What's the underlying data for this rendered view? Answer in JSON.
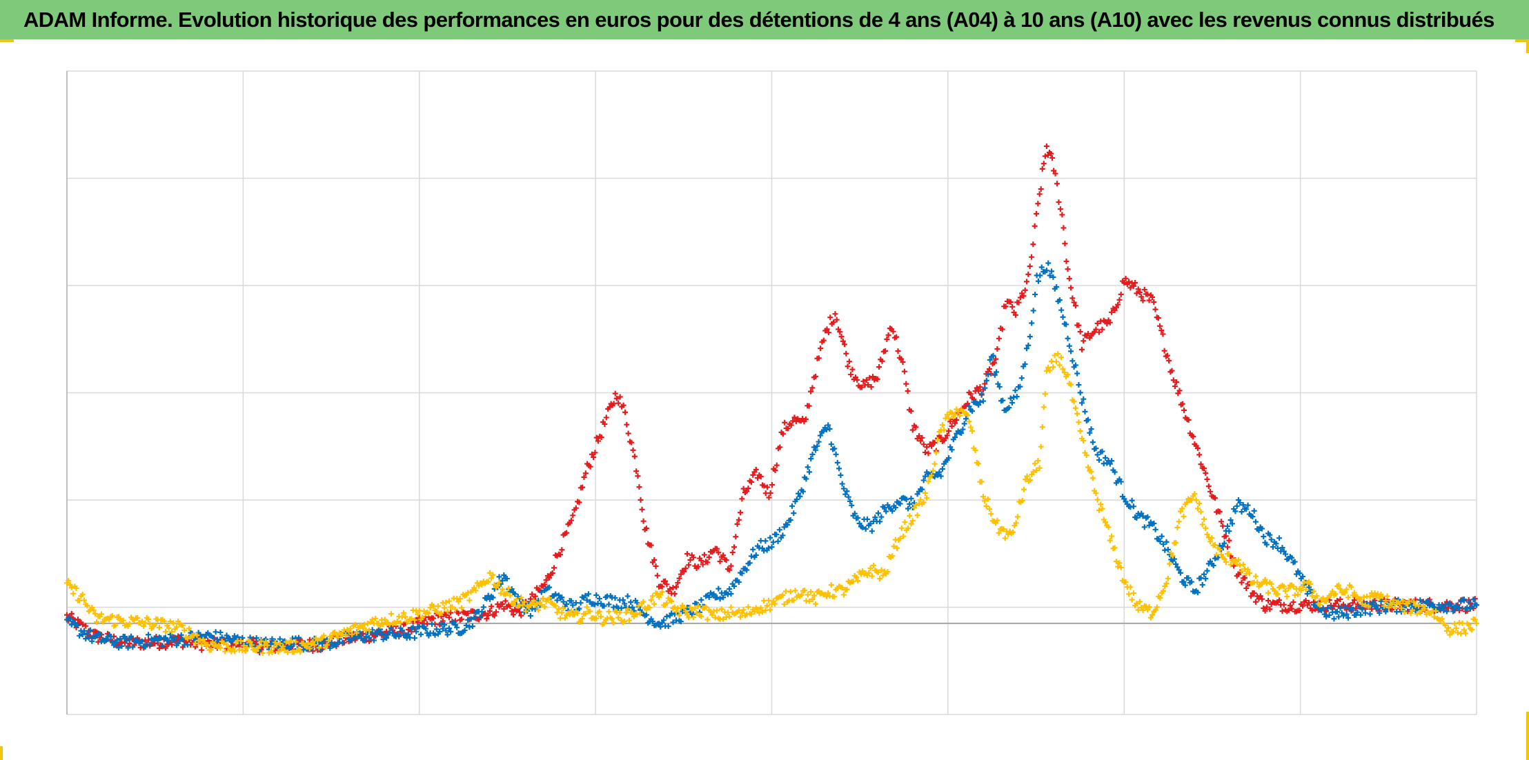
{
  "title": "ADAM Informe. Evolution historique des performances en euros pour des détentions de 4 ans (A04) à 10 ans (A10) avec les revenus connus distribués",
  "colors": {
    "header_bg": "#7fc97a",
    "accent_corner": "#f1c40f",
    "grid": "#d9d9d9",
    "zero_line": "#a6a6a6"
  },
  "chart_data": {
    "type": "scatter",
    "marker": "plus",
    "title": "ADAM Informe. Evolution historique des performances en euros pour des détentions de 4 ans (A04) à 10 ans (A10) avec les revenus connus distribués",
    "xlabel": "",
    "ylabel": "",
    "x_tick_labels_visible": false,
    "y_tick_labels_visible": false,
    "grid": true,
    "legend": "none",
    "xlim": [
      0,
      100
    ],
    "ylim": [
      -0.85,
      5.15
    ],
    "x_gridlines": 12.5,
    "y_gridlines": [
      -0.85,
      0.15,
      1.15,
      2.15,
      3.15,
      4.15,
      5.15
    ],
    "zero_line": 0,
    "series": [
      {
        "color": "#e41a1c",
        "points": [
          [
            0,
            0.06
          ],
          [
            2,
            -0.12
          ],
          [
            4,
            -0.18
          ],
          [
            6,
            -0.18
          ],
          [
            8,
            -0.16
          ],
          [
            10,
            -0.2
          ],
          [
            12,
            -0.18
          ],
          [
            14,
            -0.22
          ],
          [
            16,
            -0.2
          ],
          [
            18,
            -0.2
          ],
          [
            20,
            -0.14
          ],
          [
            22,
            -0.1
          ],
          [
            24,
            -0.06
          ],
          [
            26,
            0.04
          ],
          [
            28,
            0.06
          ],
          [
            29,
            0.08
          ],
          [
            30,
            0.1
          ],
          [
            31,
            0.18
          ],
          [
            32,
            0.1
          ],
          [
            33,
            0.22
          ],
          [
            34,
            0.38
          ],
          [
            35,
            0.7
          ],
          [
            36,
            1.0
          ],
          [
            36.8,
            1.4
          ],
          [
            37.8,
            1.75
          ],
          [
            38.5,
            1.98
          ],
          [
            39,
            2.15
          ],
          [
            39.6,
            1.95
          ],
          [
            40.5,
            1.4
          ],
          [
            41,
            0.9
          ],
          [
            42,
            0.4
          ],
          [
            43,
            0.3
          ],
          [
            44,
            0.6
          ],
          [
            45,
            0.55
          ],
          [
            46,
            0.7
          ],
          [
            47,
            0.5
          ],
          [
            48,
            1.2
          ],
          [
            49,
            1.4
          ],
          [
            49.8,
            1.2
          ],
          [
            50.8,
            1.8
          ],
          [
            51.5,
            1.9
          ],
          [
            52.3,
            1.85
          ],
          [
            53,
            2.3
          ],
          [
            53.8,
            2.7
          ],
          [
            54.5,
            2.9
          ],
          [
            55.5,
            2.4
          ],
          [
            56.5,
            2.2
          ],
          [
            57.5,
            2.3
          ],
          [
            58.5,
            2.8
          ],
          [
            59.3,
            2.4
          ],
          [
            60,
            1.85
          ],
          [
            61,
            1.6
          ],
          [
            62,
            1.7
          ],
          [
            63,
            1.9
          ],
          [
            64,
            2.1
          ],
          [
            65,
            2.2
          ],
          [
            66,
            2.5
          ],
          [
            66.6,
            3.0
          ],
          [
            67.3,
            2.9
          ],
          [
            68.2,
            3.2
          ],
          [
            69,
            4.0
          ],
          [
            69.5,
            4.45
          ],
          [
            70,
            4.25
          ],
          [
            70.6,
            3.8
          ],
          [
            71,
            3.3
          ],
          [
            72,
            2.6
          ],
          [
            73,
            2.75
          ],
          [
            74,
            2.8
          ],
          [
            75,
            3.2
          ],
          [
            76,
            3.1
          ],
          [
            77,
            3.0
          ],
          [
            78.5,
            2.3
          ],
          [
            80,
            1.7
          ],
          [
            81,
            1.3
          ],
          [
            82,
            0.9
          ],
          [
            83,
            0.5
          ],
          [
            84,
            0.3
          ],
          [
            85,
            0.17
          ],
          [
            88,
            0.17
          ],
          [
            91,
            0.17
          ],
          [
            94,
            0.17
          ],
          [
            97,
            0.17
          ],
          [
            100,
            0.17
          ]
        ]
      },
      {
        "color": "#0070c0",
        "points": [
          [
            0,
            0.0
          ],
          [
            2,
            -0.14
          ],
          [
            4,
            -0.18
          ],
          [
            6,
            -0.16
          ],
          [
            8,
            -0.15
          ],
          [
            10,
            -0.12
          ],
          [
            12,
            -0.16
          ],
          [
            14,
            -0.2
          ],
          [
            16,
            -0.18
          ],
          [
            18,
            -0.2
          ],
          [
            20,
            -0.14
          ],
          [
            22,
            -0.1
          ],
          [
            24,
            -0.1
          ],
          [
            26,
            -0.06
          ],
          [
            28,
            -0.04
          ],
          [
            29,
            0.05
          ],
          [
            30,
            0.25
          ],
          [
            31,
            0.45
          ],
          [
            32,
            0.2
          ],
          [
            33,
            0.12
          ],
          [
            34,
            0.3
          ],
          [
            35,
            0.22
          ],
          [
            36,
            0.14
          ],
          [
            37,
            0.24
          ],
          [
            38,
            0.22
          ],
          [
            39,
            0.2
          ],
          [
            40,
            0.2
          ],
          [
            41,
            0.08
          ],
          [
            42,
            0.0
          ],
          [
            43,
            0.04
          ],
          [
            44,
            0.1
          ],
          [
            45,
            0.16
          ],
          [
            46,
            0.26
          ],
          [
            47,
            0.3
          ],
          [
            48,
            0.5
          ],
          [
            49,
            0.7
          ],
          [
            50,
            0.75
          ],
          [
            51,
            0.9
          ],
          [
            52,
            1.2
          ],
          [
            53,
            1.6
          ],
          [
            54,
            1.85
          ],
          [
            55,
            1.3
          ],
          [
            56,
            0.95
          ],
          [
            57,
            0.9
          ],
          [
            58,
            1.05
          ],
          [
            59,
            1.15
          ],
          [
            60,
            1.1
          ],
          [
            61,
            1.35
          ],
          [
            62,
            1.4
          ],
          [
            63,
            1.7
          ],
          [
            64,
            2.0
          ],
          [
            65,
            2.1
          ],
          [
            65.6,
            2.5
          ],
          [
            66.5,
            2.0
          ],
          [
            67.5,
            2.15
          ],
          [
            68.2,
            2.6
          ],
          [
            68.8,
            3.2
          ],
          [
            69.5,
            3.35
          ],
          [
            70.2,
            3.1
          ],
          [
            71,
            2.7
          ],
          [
            72,
            2.1
          ],
          [
            73,
            1.6
          ],
          [
            74,
            1.5
          ],
          [
            75,
            1.2
          ],
          [
            76,
            1.0
          ],
          [
            77,
            0.9
          ],
          [
            78,
            0.7
          ],
          [
            79,
            0.45
          ],
          [
            80,
            0.3
          ],
          [
            81,
            0.5
          ],
          [
            82,
            0.75
          ],
          [
            83,
            1.1
          ],
          [
            84,
            1.05
          ],
          [
            85,
            0.8
          ],
          [
            86,
            0.75
          ],
          [
            87,
            0.55
          ],
          [
            88,
            0.3
          ],
          [
            89,
            0.12
          ],
          [
            90,
            0.08
          ],
          [
            92,
            0.14
          ],
          [
            94,
            0.16
          ],
          [
            96,
            0.17
          ],
          [
            98,
            0.17
          ],
          [
            100,
            0.17
          ]
        ]
      },
      {
        "color": "#ffc000",
        "points": [
          [
            0,
            0.35
          ],
          [
            1,
            0.25
          ],
          [
            2,
            0.05
          ],
          [
            4,
            0.02
          ],
          [
            6,
            0.0
          ],
          [
            8,
            -0.04
          ],
          [
            10,
            -0.2
          ],
          [
            12,
            -0.22
          ],
          [
            14,
            -0.22
          ],
          [
            16,
            -0.22
          ],
          [
            18,
            -0.18
          ],
          [
            20,
            -0.08
          ],
          [
            22,
            0.02
          ],
          [
            24,
            0.06
          ],
          [
            26,
            0.12
          ],
          [
            28,
            0.2
          ],
          [
            29,
            0.3
          ],
          [
            30,
            0.45
          ],
          [
            31,
            0.3
          ],
          [
            32,
            0.2
          ],
          [
            33,
            0.15
          ],
          [
            34,
            0.2
          ],
          [
            35,
            0.1
          ],
          [
            36,
            0.05
          ],
          [
            37,
            0.1
          ],
          [
            38,
            0.05
          ],
          [
            39,
            0.06
          ],
          [
            40,
            0.08
          ],
          [
            41,
            0.16
          ],
          [
            42,
            0.26
          ],
          [
            43,
            0.14
          ],
          [
            44,
            0.1
          ],
          [
            45,
            0.12
          ],
          [
            46,
            0.06
          ],
          [
            47,
            0.1
          ],
          [
            48,
            0.08
          ],
          [
            49,
            0.15
          ],
          [
            50,
            0.18
          ],
          [
            51,
            0.24
          ],
          [
            52,
            0.3
          ],
          [
            53,
            0.22
          ],
          [
            54,
            0.3
          ],
          [
            55,
            0.3
          ],
          [
            56,
            0.4
          ],
          [
            57,
            0.5
          ],
          [
            58,
            0.45
          ],
          [
            59,
            0.8
          ],
          [
            60,
            1.0
          ],
          [
            61,
            1.2
          ],
          [
            62,
            1.8
          ],
          [
            63,
            2.0
          ],
          [
            64,
            1.9
          ],
          [
            65,
            1.2
          ],
          [
            66,
            0.9
          ],
          [
            67,
            0.8
          ],
          [
            68,
            1.3
          ],
          [
            69,
            1.5
          ],
          [
            69.5,
            2.3
          ],
          [
            70.3,
            2.5
          ],
          [
            71,
            2.3
          ],
          [
            72,
            1.7
          ],
          [
            73,
            1.2
          ],
          [
            74,
            0.8
          ],
          [
            75,
            0.4
          ],
          [
            76,
            0.15
          ],
          [
            77,
            0.1
          ],
          [
            78,
            0.4
          ],
          [
            79,
            1.0
          ],
          [
            80,
            1.2
          ],
          [
            81,
            0.8
          ],
          [
            82,
            0.6
          ],
          [
            83,
            0.6
          ],
          [
            84,
            0.4
          ],
          [
            85,
            0.35
          ],
          [
            86,
            0.3
          ],
          [
            87,
            0.3
          ],
          [
            88,
            0.35
          ],
          [
            89,
            0.2
          ],
          [
            90,
            0.3
          ],
          [
            91,
            0.3
          ],
          [
            92,
            0.2
          ],
          [
            93,
            0.25
          ],
          [
            94,
            0.18
          ],
          [
            95,
            0.15
          ],
          [
            96,
            0.14
          ],
          [
            97,
            0.1
          ],
          [
            98,
            -0.05
          ],
          [
            99,
            -0.05
          ],
          [
            100,
            0.0
          ]
        ]
      }
    ]
  }
}
